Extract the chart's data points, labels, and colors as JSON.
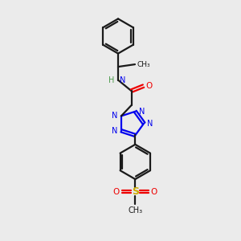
{
  "bg_color": "#ebebeb",
  "line_color": "#1a1a1a",
  "N_color": "#0000ee",
  "O_color": "#ee0000",
  "S_color": "#ccaa00",
  "bond_lw": 1.6,
  "figsize": [
    3.0,
    3.0
  ],
  "dpi": 100,
  "xlim": [
    0,
    10
  ],
  "ylim": [
    0,
    10
  ]
}
